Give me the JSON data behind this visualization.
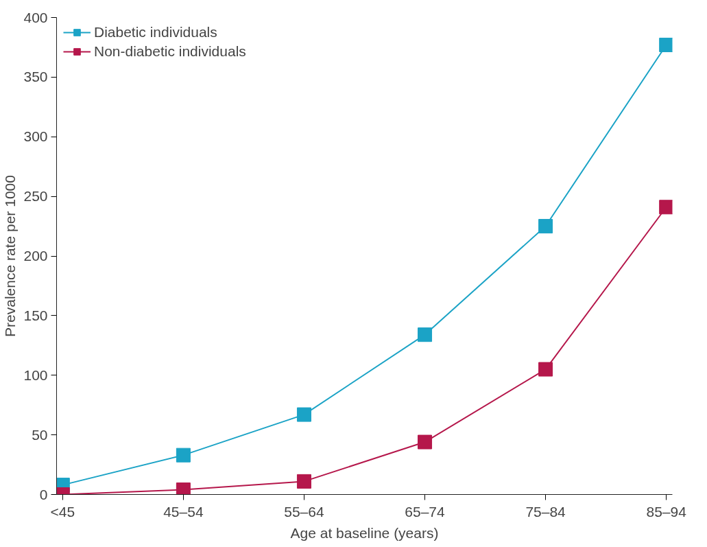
{
  "chart_data": {
    "type": "line",
    "xlabel": "Age at baseline (years)",
    "ylabel": "Prevalence rate per 1000",
    "categories": [
      "<45",
      "45–54",
      "55–64",
      "65–74",
      "75–84",
      "85–94"
    ],
    "series": [
      {
        "name": "Diabetic individuals",
        "color": "#1ba3c6",
        "values": [
          8,
          33,
          67,
          134,
          225,
          377
        ]
      },
      {
        "name": "Non-diabetic individuals",
        "color": "#b5174b",
        "values": [
          0,
          4,
          11,
          44,
          105,
          241
        ]
      }
    ],
    "ylim": [
      0,
      400
    ],
    "yticks": [
      0,
      50,
      100,
      150,
      200,
      250,
      300,
      350,
      400
    ],
    "grid": false,
    "legend": "top left",
    "marker": "square",
    "line_style": "solid"
  }
}
